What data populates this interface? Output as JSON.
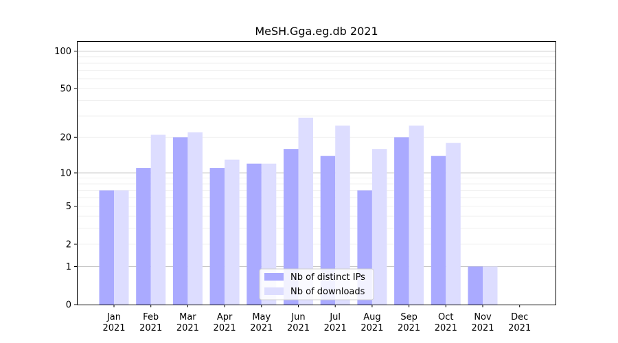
{
  "chart_data": {
    "type": "bar",
    "title": "MeSH.Gga.eg.db 2021",
    "xlabel": "",
    "ylabel": "",
    "categories": [
      "Jan\n2021",
      "Feb\n2021",
      "Mar\n2021",
      "Apr\n2021",
      "May\n2021",
      "Jun\n2021",
      "Jul\n2021",
      "Aug\n2021",
      "Sep\n2021",
      "Oct\n2021",
      "Nov\n2021",
      "Dec\n2021"
    ],
    "series": [
      {
        "name": "Nb of distinct IPs",
        "color": "#aaaaff",
        "values": [
          7,
          11,
          20,
          11,
          12,
          16,
          14,
          7,
          20,
          14,
          1,
          0
        ]
      },
      {
        "name": "Nb of downloads",
        "color": "#ddddff",
        "values": [
          7,
          21,
          22,
          13,
          12,
          29,
          25,
          16,
          25,
          18,
          1,
          0
        ]
      }
    ],
    "yscale": "log(1+y)",
    "ylim": [
      0,
      120
    ],
    "yticks": [
      0,
      1,
      2,
      5,
      10,
      20,
      50,
      100
    ],
    "grid": true,
    "legend_position": "bottom-center"
  }
}
